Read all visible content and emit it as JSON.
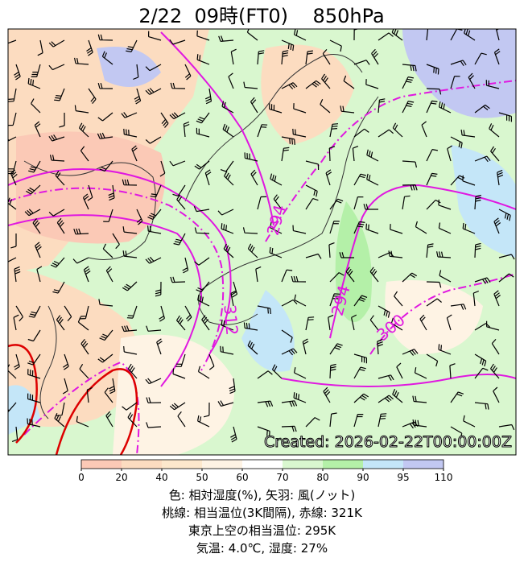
{
  "title": "2/22  09時(FT0)    850hPa",
  "map": {
    "contour_labels": [
      "294",
      "312",
      "294",
      "300"
    ],
    "created": "Created: 2026-02-22T00:00:00Z",
    "colorbar": {
      "ticks": [
        0,
        20,
        40,
        50,
        60,
        70,
        80,
        90,
        95,
        110
      ],
      "colors": [
        "#fbc9b6",
        "#fcdcc0",
        "#fde8cc",
        "#fef3e4",
        "#ffffff",
        "#d9f7cf",
        "#b4f0a8",
        "#c4e6f8",
        "#c2c8f2"
      ]
    }
  },
  "caption": [
    "色: 相対湿度(%), 矢羽: 風(ノット)",
    "桃線: 相当温位(3K間隔), 赤線: 321K",
    "東京上空の相当温位: 295K",
    "気温: 4.0℃, 湿度: 27%"
  ]
}
